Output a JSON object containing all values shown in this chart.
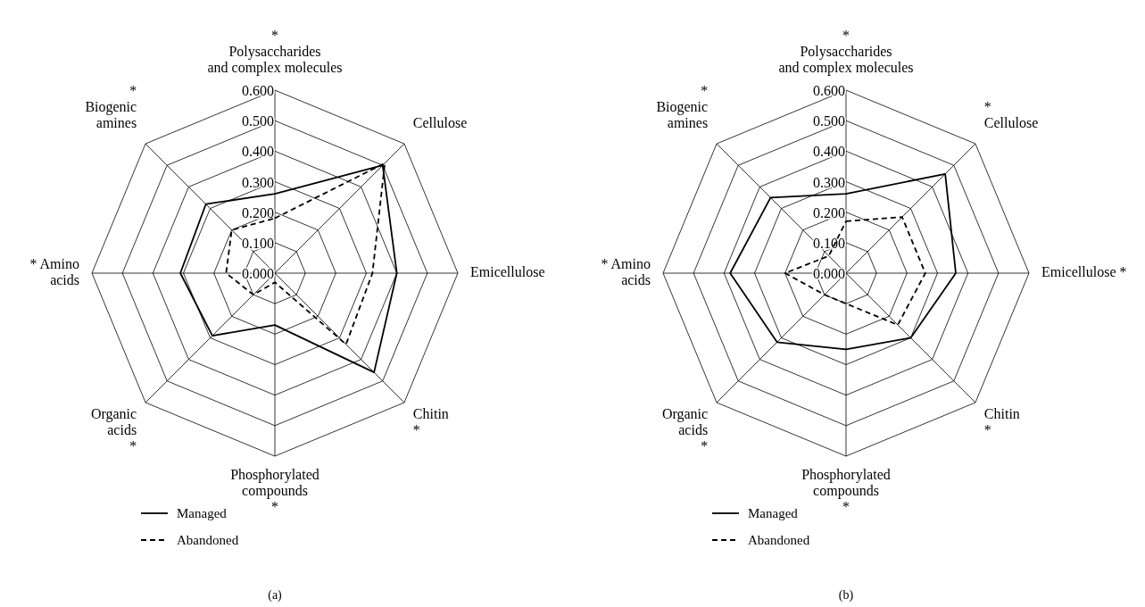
{
  "chart_data": [
    {
      "type": "radar",
      "categories": [
        "*\nPolysaccharides\nand complex molecules",
        "Cellulose",
        "Emicellulose",
        "Chitin\n*",
        "Phosphorylated\ncompounds\n*",
        "Organic\nacids\n*",
        "* Amino\nacids",
        "*\nBiogenic\namines"
      ],
      "series": [
        {
          "name": "Managed",
          "color": "#000000",
          "line_style": "solid",
          "values": [
            0.26,
            0.5,
            0.4,
            0.46,
            0.17,
            0.29,
            0.31,
            0.32
          ]
        },
        {
          "name": "Abandoned",
          "color": "#000000",
          "line_style": "dashed",
          "values": [
            0.18,
            0.51,
            0.32,
            0.33,
            0.03,
            0.1,
            0.16,
            0.2
          ]
        }
      ],
      "ylim": [
        0,
        0.6
      ],
      "yticks": [
        {
          "value": 0,
          "label": "0.000"
        },
        {
          "value": 0.1,
          "label": "0.100"
        },
        {
          "value": 0.2,
          "label": "0.200"
        },
        {
          "value": 0.3,
          "label": "0.300"
        },
        {
          "value": 0.4,
          "label": "0.400"
        },
        {
          "value": 0.5,
          "label": "0.500"
        },
        {
          "value": 0.6,
          "label": "0.600"
        }
      ],
      "grid": true,
      "legend": "bottom left",
      "annotations": [
        "(a)"
      ]
    },
    {
      "type": "radar",
      "categories": [
        "*\nPolysaccharides\nand complex molecules",
        "*\nCellulose",
        "Emicellulose *",
        "Chitin\n*",
        "Phosphorylated\ncompounds\n*",
        "Organic\nacids\n*",
        "* Amino\nacids",
        "*\nBiogenic\namines"
      ],
      "series": [
        {
          "name": "Managed",
          "color": "#000000",
          "line_style": "solid",
          "values": [
            0.26,
            0.46,
            0.36,
            0.3,
            0.25,
            0.32,
            0.38,
            0.35
          ]
        },
        {
          "name": "Abandoned",
          "color": "#000000",
          "line_style": "dashed",
          "values": [
            0.17,
            0.26,
            0.26,
            0.24,
            0.1,
            0.1,
            0.2,
            0.08
          ]
        }
      ],
      "ylim": [
        0,
        0.6
      ],
      "yticks": [
        {
          "value": 0,
          "label": "0.000"
        },
        {
          "value": 0.1,
          "label": "0.100"
        },
        {
          "value": 0.2,
          "label": "0.200"
        },
        {
          "value": 0.3,
          "label": "0.300"
        },
        {
          "value": 0.4,
          "label": "0.400"
        },
        {
          "value": 0.5,
          "label": "0.500"
        },
        {
          "value": 0.6,
          "label": "0.600"
        }
      ],
      "grid": true,
      "legend": "bottom left",
      "annotations": [
        "(b)"
      ]
    }
  ]
}
